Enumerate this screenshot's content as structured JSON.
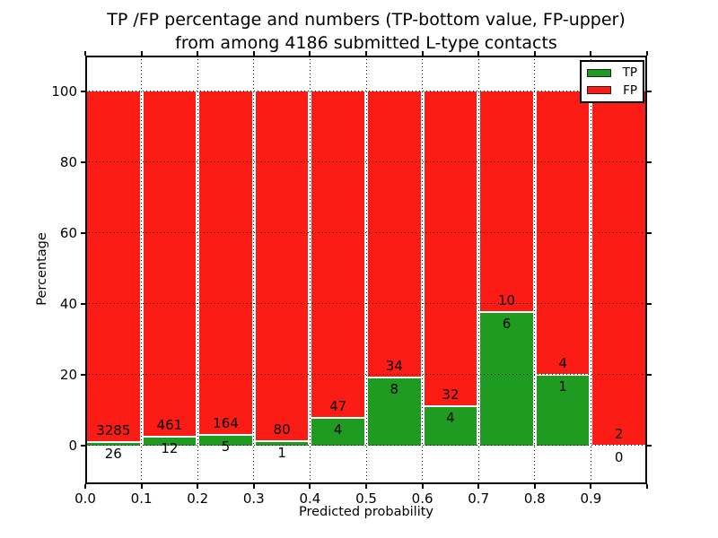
{
  "chart_data": {
    "type": "bar",
    "stacked": true,
    "normalized": "each bin scaled to 100%",
    "title_line1": "TP /FP percentage and numbers (TP-bottom value, FP-upper)",
    "title_line2": "from among 4186 submitted L-type contacts",
    "xlabel": "Predicted probability",
    "ylabel": "Percentage",
    "total_contacts": 4186,
    "bin_start": [
      0.0,
      0.1,
      0.2,
      0.3,
      0.4,
      0.5,
      0.6,
      0.7,
      0.8,
      0.9
    ],
    "bin_width": 0.1,
    "series": [
      {
        "name": "TP",
        "color": "#1e9b20",
        "counts": [
          26,
          12,
          5,
          1,
          4,
          8,
          4,
          6,
          1,
          0
        ]
      },
      {
        "name": "FP",
        "color": "#fb1c15",
        "counts": [
          3285,
          461,
          164,
          80,
          47,
          34,
          32,
          10,
          4,
          2
        ]
      }
    ],
    "tp_percent_per_bin": [
      0.79,
      2.54,
      2.96,
      1.23,
      7.84,
      19.05,
      11.11,
      37.5,
      20.0,
      0.0
    ],
    "xlim": [
      0.0,
      1.0
    ],
    "ylim": [
      -11,
      110
    ],
    "xtick_values": [
      0.0,
      0.1,
      0.2,
      0.3,
      0.4,
      0.5,
      0.6,
      0.7,
      0.8,
      0.9,
      1.0
    ],
    "xtick_labels": [
      "0.0",
      "0.1",
      "0.2",
      "0.3",
      "0.4",
      "0.5",
      "0.6",
      "0.7",
      "0.8",
      "0.9",
      ""
    ],
    "ytick_values": [
      0,
      20,
      40,
      60,
      80,
      100
    ],
    "ytick_labels": [
      "0",
      "20",
      "40",
      "60",
      "80",
      "100"
    ],
    "grid": "dotted",
    "legend": {
      "position": "upper-right",
      "entries": [
        "TP",
        "FP"
      ]
    }
  }
}
